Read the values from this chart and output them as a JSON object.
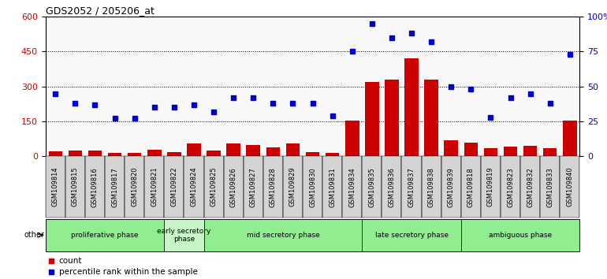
{
  "title": "GDS2052 / 205206_at",
  "samples": [
    "GSM109814",
    "GSM109815",
    "GSM109816",
    "GSM109817",
    "GSM109820",
    "GSM109821",
    "GSM109822",
    "GSM109824",
    "GSM109825",
    "GSM109826",
    "GSM109827",
    "GSM109828",
    "GSM109829",
    "GSM109830",
    "GSM109831",
    "GSM109834",
    "GSM109835",
    "GSM109836",
    "GSM109837",
    "GSM109838",
    "GSM109839",
    "GSM109818",
    "GSM109819",
    "GSM109823",
    "GSM109832",
    "GSM109833",
    "GSM109840"
  ],
  "count": [
    20,
    25,
    25,
    15,
    15,
    28,
    18,
    55,
    25,
    55,
    48,
    38,
    55,
    18,
    15,
    155,
    320,
    330,
    420,
    330,
    70,
    60,
    35,
    40,
    45,
    35,
    155
  ],
  "percentile": [
    45,
    38,
    37,
    27,
    27,
    35,
    35,
    37,
    32,
    42,
    42,
    38,
    38,
    38,
    29,
    75,
    95,
    85,
    88,
    82,
    50,
    48,
    28,
    42,
    45,
    38,
    73
  ],
  "phases": [
    {
      "label": "proliferative phase",
      "start": 0,
      "end": 6,
      "color": "#90EE90"
    },
    {
      "label": "early secretory\nphase",
      "start": 6,
      "end": 8,
      "color": "#c8f5c8"
    },
    {
      "label": "mid secretory phase",
      "start": 8,
      "end": 16,
      "color": "#90EE90"
    },
    {
      "label": "late secretory phase",
      "start": 16,
      "end": 21,
      "color": "#90EE90"
    },
    {
      "label": "ambiguous phase",
      "start": 21,
      "end": 27,
      "color": "#90EE90"
    }
  ],
  "ylim_left": [
    0,
    600
  ],
  "ylim_right": [
    0,
    100
  ],
  "yticks_left": [
    0,
    150,
    300,
    450,
    600
  ],
  "yticks_right": [
    0,
    25,
    50,
    75,
    100
  ],
  "bar_color": "#cc0000",
  "dot_color": "#0000cc",
  "legend_items": [
    "count",
    "percentile rank within the sample"
  ]
}
